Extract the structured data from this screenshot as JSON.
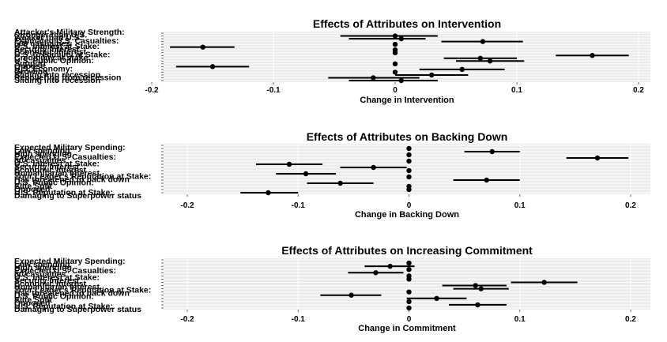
{
  "chart_data": [
    {
      "type": "scatter",
      "title": "Effects of Attributes on Intervention",
      "xlabel": "Change in Intervention",
      "xlim": [
        -0.2,
        0.2
      ],
      "xticks": [
        -0.2,
        -0.1,
        0,
        0.1,
        0.2
      ],
      "xtick_labels": [
        "-0.2",
        "-0.1",
        "0",
        "0.1",
        "0.2"
      ],
      "grid": true,
      "rows": [
        {
          "label": "Attacker's Military Strength:",
          "estimate": 0,
          "lo": 0,
          "hi": 0,
          "hasPoint": false
        },
        {
          "label": "Stronger than U.S.",
          "estimate": 0,
          "lo": -0.045,
          "hi": 0.035,
          "hasPoint": true
        },
        {
          "label": "Weaker than U.S.",
          "estimate": 0.005,
          "lo": -0.038,
          "hi": 0.025,
          "hasPoint": true
        },
        {
          "label": "Estimated U.S. Casualties:",
          "estimate": 0.072,
          "lo": 0.038,
          "hi": 0.105,
          "hasPoint": true
        },
        {
          "label": "500 casualties",
          "estimate": 0,
          "lo": 0,
          "hi": 0,
          "hasPoint": true
        },
        {
          "label": "U.S. Interest at Stake:",
          "estimate": -0.158,
          "lo": -0.185,
          "hi": -0.132,
          "hasPoint": true
        },
        {
          "label": "Security Interest",
          "estimate": 0,
          "lo": 0,
          "hi": 0,
          "hasPoint": true
        },
        {
          "label": "Economic Interest",
          "estimate": 0,
          "lo": 0,
          "hi": 0,
          "hasPoint": true
        },
        {
          "label": "U.S. Credibility at Stake:",
          "estimate": 0.162,
          "lo": 0.132,
          "hi": 0.192,
          "hasPoint": true
        },
        {
          "label": "Credibility at stake",
          "estimate": 0.07,
          "lo": 0.04,
          "hi": 0.1,
          "hasPoint": true
        },
        {
          "label": "U.S. Public Opinion:",
          "estimate": 0.078,
          "lo": 0.05,
          "hi": 0.106,
          "hasPoint": true
        },
        {
          "label": "Support",
          "estimate": 0,
          "lo": 0,
          "hi": 0,
          "hasPoint": true
        },
        {
          "label": "Oppose",
          "estimate": -0.15,
          "lo": -0.18,
          "hi": -0.12,
          "hasPoint": true
        },
        {
          "label": "U.S. Economy:",
          "estimate": 0.055,
          "lo": 0.02,
          "hi": 0.09,
          "hasPoint": true
        },
        {
          "label": "Growing",
          "estimate": 0,
          "lo": 0,
          "hi": 0,
          "hasPoint": true
        },
        {
          "label": "Sliding into recession",
          "estimate": 0.03,
          "lo": 0,
          "hi": 0.06,
          "hasPoint": true
        },
        {
          "label": "Recovering from recession",
          "estimate": -0.018,
          "lo": -0.055,
          "hi": 0.02,
          "hasPoint": true
        },
        {
          "label": "Sliding into recession",
          "estimate": 0.005,
          "lo": -0.038,
          "hi": 0.035,
          "hasPoint": true
        }
      ]
    },
    {
      "type": "scatter",
      "title": "Effects of Attributes on Backing Down",
      "xlabel": "Change in Backing Down",
      "xlim": [
        -0.2,
        0.2
      ],
      "xticks": [
        -0.2,
        -0.1,
        0,
        0.1,
        0.2
      ],
      "xtick_labels": [
        "-0.2",
        "-0.1",
        "0",
        "0.1",
        "0.2"
      ],
      "grid": true,
      "rows": [
        {
          "label": "Expected Military Spending:",
          "estimate": 0,
          "lo": 0,
          "hi": 0,
          "hasPoint": false
        },
        {
          "label": "Low spending",
          "estimate": 0,
          "lo": 0,
          "hi": 0,
          "hasPoint": true
        },
        {
          "label": "High spending",
          "estimate": 0.075,
          "lo": 0.05,
          "hi": 0.1,
          "hasPoint": true
        },
        {
          "label": "Expected U.S. Casualties:",
          "estimate": 0,
          "lo": 0,
          "hi": 0,
          "hasPoint": true
        },
        {
          "label": "50 casualties",
          "estimate": 0.17,
          "lo": 0.142,
          "hi": 0.198,
          "hasPoint": true
        },
        {
          "label": "U.S. Interest at Stake:",
          "estimate": 0,
          "lo": 0,
          "hi": 0,
          "hasPoint": true
        },
        {
          "label": "Security Interest",
          "estimate": -0.108,
          "lo": -0.138,
          "hi": -0.078,
          "hasPoint": true
        },
        {
          "label": "Economic Interest",
          "estimate": -0.032,
          "lo": -0.062,
          "hi": -0.002,
          "hasPoint": true
        },
        {
          "label": "Humanitarian Interest",
          "estimate": 0,
          "lo": 0,
          "hi": 0,
          "hasPoint": true
        },
        {
          "label": "Your Leader's Reputation at Stake:",
          "estimate": -0.093,
          "lo": -0.12,
          "hi": -0.066,
          "hasPoint": true
        },
        {
          "label": "Has threatened to back down",
          "estimate": 0,
          "lo": 0,
          "hi": 0,
          "hasPoint": true
        },
        {
          "label": "U.S. Public Opinion:",
          "estimate": 0.07,
          "lo": 0.04,
          "hi": 0.1,
          "hasPoint": true
        },
        {
          "label": "Elite Split",
          "estimate": -0.062,
          "lo": -0.092,
          "hi": -0.032,
          "hasPoint": true
        },
        {
          "label": "Opposed",
          "estimate": 0,
          "lo": 0,
          "hi": 0,
          "hasPoint": true
        },
        {
          "label": "U.S. Reputation at Stake:",
          "estimate": 0,
          "lo": 0,
          "hi": 0,
          "hasPoint": true
        },
        {
          "label": "Damaging to Superpower status",
          "estimate": -0.127,
          "lo": -0.152,
          "hi": -0.1,
          "hasPoint": true
        }
      ]
    },
    {
      "type": "scatter",
      "title": "Effects of Attributes on Increasing Commitment",
      "xlabel": "Change in Commitment",
      "xlim": [
        -0.2,
        0.2
      ],
      "xticks": [
        -0.2,
        -0.1,
        0,
        0.1,
        0.2
      ],
      "xtick_labels": [
        "-0.2",
        "-0.1",
        "0",
        "0.1",
        "0.2"
      ],
      "grid": true,
      "rows": [
        {
          "label": "Expected Military Spending:",
          "estimate": 0,
          "lo": 0,
          "hi": 0,
          "hasPoint": false
        },
        {
          "label": "Low spending",
          "estimate": 0,
          "lo": 0,
          "hi": 0,
          "hasPoint": true
        },
        {
          "label": "High spending",
          "estimate": -0.017,
          "lo": -0.04,
          "hi": 0.005,
          "hasPoint": true
        },
        {
          "label": "Expected U.S. Casualties:",
          "estimate": 0,
          "lo": 0,
          "hi": 0,
          "hasPoint": true
        },
        {
          "label": "50 casualties",
          "estimate": -0.03,
          "lo": -0.055,
          "hi": -0.005,
          "hasPoint": true
        },
        {
          "label": "U.S. Interest at Stake:",
          "estimate": 0,
          "lo": 0,
          "hi": 0,
          "hasPoint": true
        },
        {
          "label": "Security Interest",
          "estimate": 0,
          "lo": 0,
          "hi": 0,
          "hasPoint": true
        },
        {
          "label": "Economic Interest",
          "estimate": 0.122,
          "lo": 0.092,
          "hi": 0.152,
          "hasPoint": true
        },
        {
          "label": "Humanitarian Interest",
          "estimate": 0.06,
          "lo": 0.03,
          "hi": 0.088,
          "hasPoint": true
        },
        {
          "label": "Your Leader's Reputation at Stake:",
          "estimate": 0.065,
          "lo": 0.04,
          "hi": 0.09,
          "hasPoint": true
        },
        {
          "label": "Has threatened to back down",
          "estimate": 0,
          "lo": 0,
          "hi": 0,
          "hasPoint": true
        },
        {
          "label": "U.S. Public Opinion:",
          "estimate": -0.052,
          "lo": -0.08,
          "hi": -0.025,
          "hasPoint": true
        },
        {
          "label": "Elite Split",
          "estimate": 0.025,
          "lo": -0.002,
          "hi": 0.052,
          "hasPoint": true
        },
        {
          "label": "Opposed",
          "estimate": 0,
          "lo": 0,
          "hi": 0,
          "hasPoint": true
        },
        {
          "label": "U.S. Reputation at Stake:",
          "estimate": 0.062,
          "lo": 0.036,
          "hi": 0.088,
          "hasPoint": true
        },
        {
          "label": "Damaging to Superpower status",
          "estimate": 0,
          "lo": 0,
          "hi": 0,
          "hasPoint": true
        }
      ]
    }
  ]
}
